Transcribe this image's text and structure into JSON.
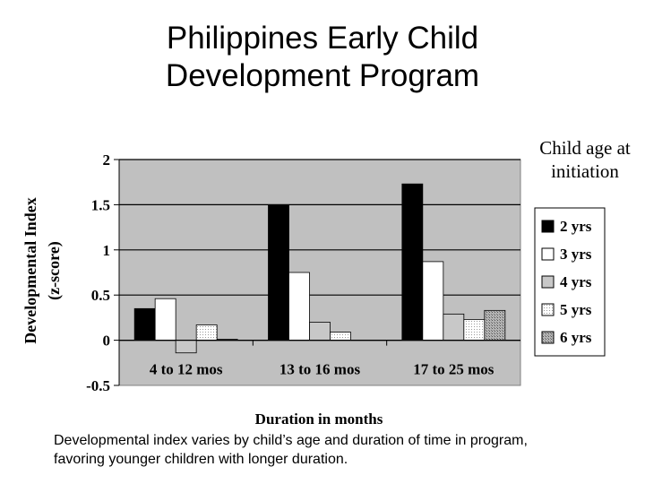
{
  "slide": {
    "title_line1": "Philippines Early Child",
    "title_line2": "Development Program",
    "caption_line1": "Developmental index varies by child’s age and duration of time in program,",
    "caption_line2": "favoring younger children with longer duration."
  },
  "chart_data": {
    "type": "bar",
    "title": "",
    "xlabel": "Duration in months",
    "ylabel_line1": "Developmental Index",
    "ylabel_line2": "(z-score)",
    "ylim": [
      -0.5,
      2
    ],
    "yticks": [
      -0.5,
      0,
      0.5,
      1,
      1.5,
      2
    ],
    "ytick_labels": [
      "-0.5",
      "0",
      "0.5",
      "1",
      "1.5",
      "2"
    ],
    "grid": true,
    "legend_title_line1": "Child age at",
    "legend_title_line2": "initiation",
    "legend_placement": "right",
    "categories": [
      "4 to 12 mos",
      "13 to 16 mos",
      "17 to 25 mos"
    ],
    "series": [
      {
        "name": "2 yrs",
        "values": [
          0.35,
          1.5,
          1.73
        ],
        "color": "#000000",
        "pattern": "solid"
      },
      {
        "name": "3 yrs",
        "values": [
          0.46,
          0.75,
          0.87
        ],
        "color": "#ffffff",
        "pattern": "solid"
      },
      {
        "name": "4 yrs",
        "values": [
          -0.14,
          0.2,
          0.29
        ],
        "color": "#c8c8c8",
        "pattern": "solid"
      },
      {
        "name": "5 yrs",
        "values": [
          0.17,
          0.09,
          0.23
        ],
        "color": "#ffffff",
        "pattern": "dots"
      },
      {
        "name": "6 yrs",
        "values": [
          0.01,
          null,
          0.33
        ],
        "color": "#a8a8a8",
        "pattern": "dots"
      }
    ],
    "colors": {
      "plot_background": "#c0c0c0"
    }
  }
}
